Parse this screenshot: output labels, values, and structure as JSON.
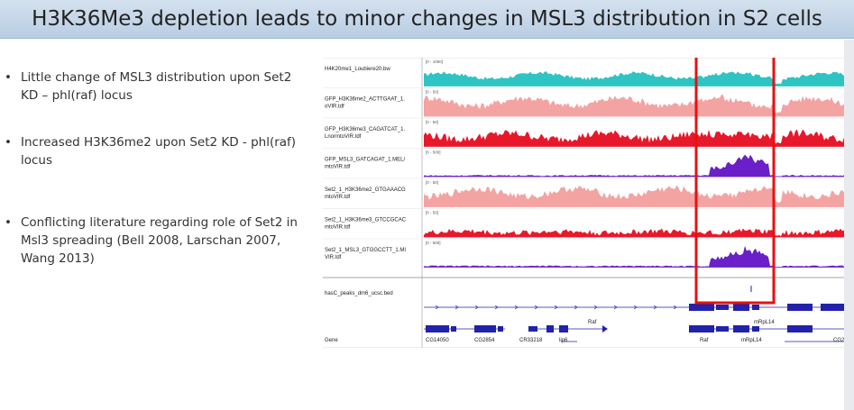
{
  "title": "H3K36Me3 depletion leads to minor changes in MSL3 distribution in S2 cells",
  "bullets": [
    "Little change of MSL3 distribution upon Set2 KD – phl(raf) locus",
    "Increased H3K36me2 upon Set2 KD - phl(raf) locus",
    "Conflicting literature regarding role of Set2 in Msl3 spreading (Bell 2008, Larschan 2007, Wang 2013)"
  ],
  "igv": {
    "tracks": [
      {
        "label1": "H4K20me1_Loubiere20.bw",
        "label2": "",
        "range": "[0 - 1000]",
        "color": "#2ec4c4"
      },
      {
        "label1": "GFP_H3K36me2_ACTTGAAT_1.",
        "label2": "oVIR.tdf",
        "range": "[0 - 50]",
        "color": "#f4a3a3"
      },
      {
        "label1": "GFP_H3K36me3_CAGATCAT_1.",
        "label2": "LnormtoVIR.tdf",
        "range": "[0 - 50]",
        "color": "#e8182b"
      },
      {
        "label1": "GFP_MSL3_GATCAGAT_1.MEL/",
        "label2": "mtoVIR.tdf",
        "range": "[0 - 500]",
        "color": "#6a1fc9"
      },
      {
        "label1": "Set2_1_H3K36me2_GTGAAACG",
        "label2": "mtoVIR.tdf",
        "range": "[0 - 50]",
        "color": "#f4a3a3"
      },
      {
        "label1": "Set2_1_H3K36me3_GTCCGCAC",
        "label2": "mtoVIR.tdf",
        "range": "[0 - 50]",
        "color": "#e8182b"
      },
      {
        "label1": "Set2_1_MSL3_GTGGCCTT_1.MI",
        "label2": "VIR.tdf",
        "range": "[0 - 500]",
        "color": "#6a1fc9"
      }
    ],
    "peaks_label": "hasC_peaks_dm6_ucsc.bed",
    "gene_label": "Gene",
    "gene_names": [
      "Raf",
      "mRpL14",
      "CG14050",
      "CG2854",
      "CR33218",
      "lip6",
      "Raf",
      "mRpL14",
      "CG28"
    ],
    "gene_names_partial": [
      "C"
    ],
    "colors": {
      "gene": "#2222aa",
      "highlight": "#e81010"
    }
  }
}
